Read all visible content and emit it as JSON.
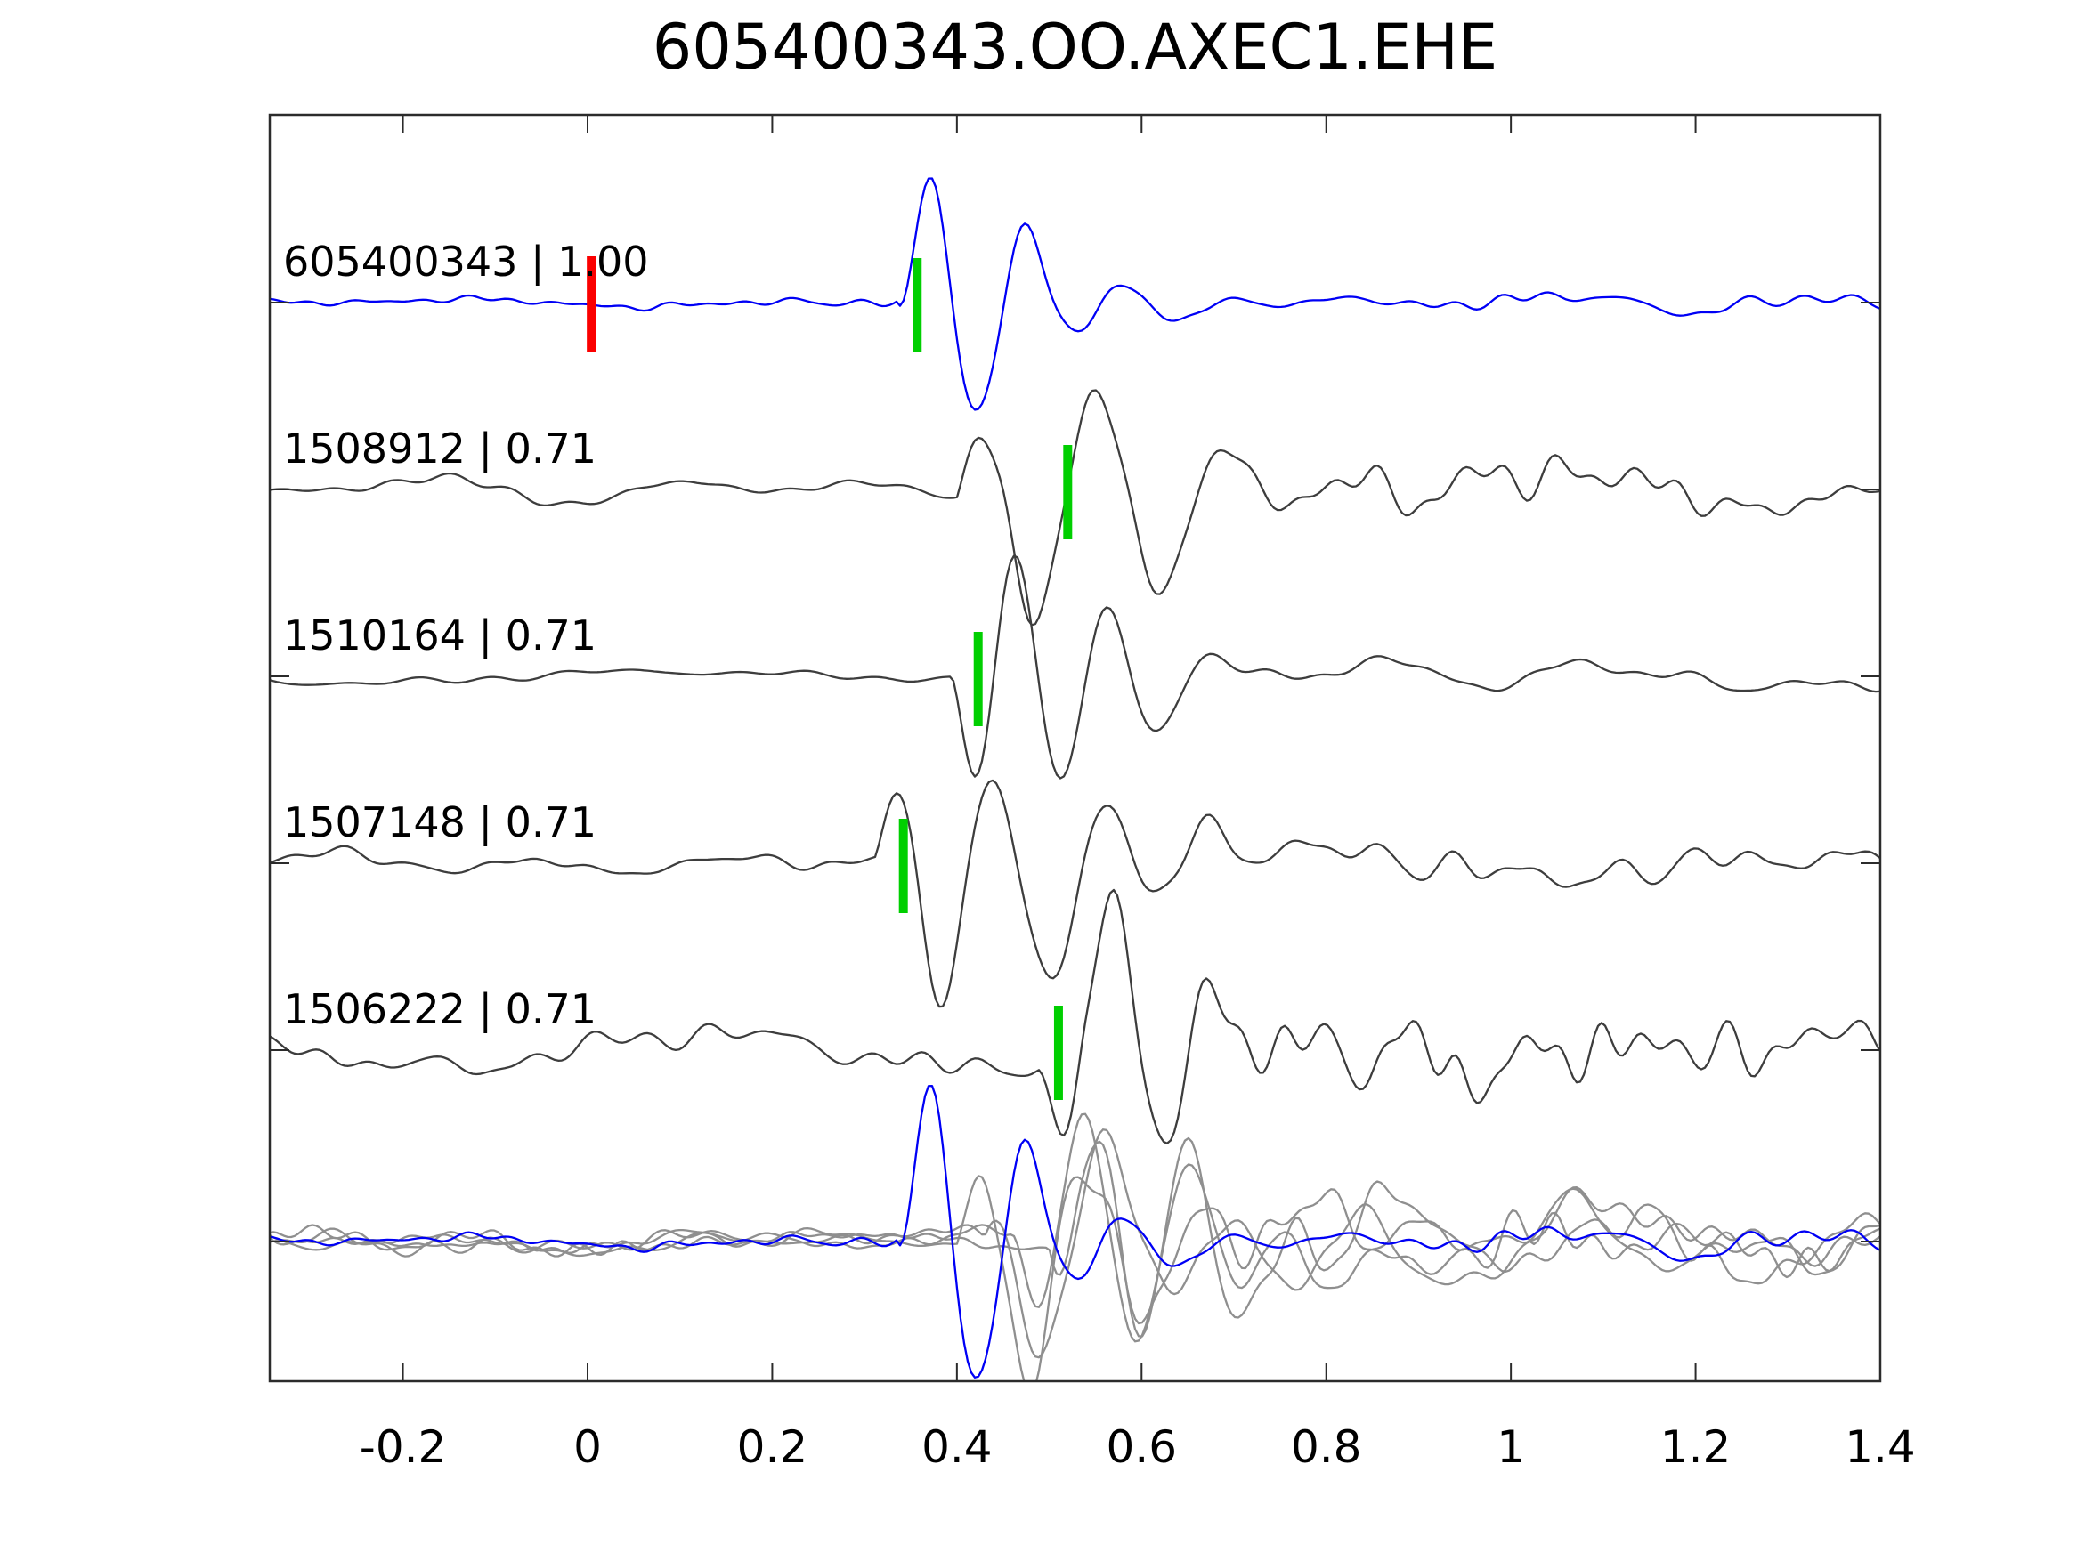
{
  "chart_data": {
    "type": "line",
    "title": "605400343.OO.AXEC1.EHE",
    "xlabel": "",
    "ylabel": "",
    "xlim": [
      -0.344,
      1.4
    ],
    "grid": false,
    "legend": "none",
    "x_ticks": [
      {
        "value": -0.2,
        "label": "-0.2"
      },
      {
        "value": 0,
        "label": "0"
      },
      {
        "value": 0.2,
        "label": "0.2"
      },
      {
        "value": 0.4,
        "label": "0.4"
      },
      {
        "value": 0.6,
        "label": "0.6"
      },
      {
        "value": 0.8,
        "label": "0.8"
      },
      {
        "value": 1,
        "label": "1"
      },
      {
        "value": 1.2,
        "label": "1.2"
      },
      {
        "value": 1.4,
        "label": "1.4"
      }
    ],
    "colors": {
      "template": "#0000f5",
      "detection": "#3d3d3d",
      "overlay_gray": "#8f8f8f",
      "pick_marker": "#00cf00",
      "origin_marker": "#fb0000",
      "frame": "#2b2b2b",
      "text": "#000000"
    },
    "series": [
      {
        "id": "605400343",
        "correlation": "1.00",
        "label": "605400343 | 1.00",
        "role": "template",
        "color": "#0000f5",
        "pick_time": 0.357,
        "pick_color": "#00cf00",
        "origin_time": 0.004,
        "origin_color": "#fb0000",
        "waveform": {
          "seed": 5,
          "noise": 7,
          "coda": 24,
          "codaDecay": 0.6,
          "codaFloor": 0.25,
          "onset": 0.335,
          "A": 185,
          "F": 9.2,
          "phase": -0.45,
          "p": 0.062,
          "d": 0.28
        }
      },
      {
        "id": "1508912",
        "correlation": "0.71",
        "label": "1508912 | 0.71",
        "role": "detection",
        "color": "#3d3d3d",
        "pick_time": 0.52,
        "pick_color": "#00cf00",
        "waveform": {
          "seed": 9,
          "noise": 14,
          "coda": 46,
          "codaDecay": 1.3,
          "codaFloor": 0.38,
          "onset": 0.4,
          "A": 170,
          "F": 7.2,
          "phase": 0.9,
          "p": 0.12,
          "d": 0.5
        }
      },
      {
        "id": "1510164",
        "correlation": "0.71",
        "label": "1510164 | 0.71",
        "role": "detection",
        "color": "#3d3d3d",
        "pick_time": 0.423,
        "pick_color": "#00cf00",
        "waveform": {
          "seed": 13,
          "noise": 11,
          "coda": 38,
          "codaDecay": 1.1,
          "codaFloor": 0.33,
          "onset": 0.395,
          "A": 175,
          "F": 9.8,
          "phase": 3.6,
          "p": 0.07,
          "d": 0.45
        }
      },
      {
        "id": "1507148",
        "correlation": "0.71",
        "label": "1507148 | 0.71",
        "role": "detection",
        "color": "#3d3d3d",
        "pick_time": 0.342,
        "pick_color": "#00cf00",
        "waveform": {
          "seed": 17,
          "noise": 15,
          "coda": 42,
          "codaDecay": 1.2,
          "codaFloor": 0.36,
          "onset": 0.312,
          "A": 175,
          "F": 8.6,
          "phase": 0.85,
          "p": 0.11,
          "d": 0.5
        }
      },
      {
        "id": "1506222",
        "correlation": "0.71",
        "label": "1506222 | 0.71",
        "role": "detection",
        "color": "#3d3d3d",
        "pick_time": 0.51,
        "pick_color": "#00cf00",
        "waveform": {
          "seed": 23,
          "noise": 28,
          "coda": 60,
          "codaDecay": 1.6,
          "codaFloor": 0.5,
          "onset": 0.488,
          "A": 165,
          "F": 9.0,
          "phase": 3.3,
          "p": 0.08,
          "d": 0.5
        }
      }
    ],
    "overlay": {
      "description": "all aligned traces superimposed, detections gray, template blue on top",
      "members": [
        {
          "role": "overlay-gray",
          "color": "#8f8f8f",
          "waveform": {
            "seed": 31,
            "noise": 16,
            "coda": 55,
            "codaDecay": 1.5,
            "codaFloor": 0.5,
            "onset": 0.4,
            "A": 150,
            "F": 7.8,
            "phase": 0.9,
            "p": 0.09,
            "d": 0.6
          }
        },
        {
          "role": "overlay-gray",
          "color": "#8f8f8f",
          "waveform": {
            "seed": 37,
            "noise": 16,
            "coda": 55,
            "codaDecay": 1.5,
            "codaFloor": 0.5,
            "onset": 0.46,
            "A": 160,
            "F": 8.8,
            "phase": 3.4,
            "p": 0.09,
            "d": 0.6
          }
        },
        {
          "role": "overlay-gray",
          "color": "#8f8f8f",
          "waveform": {
            "seed": 41,
            "noise": 16,
            "coda": 55,
            "codaDecay": 1.5,
            "codaFloor": 0.5,
            "onset": 0.43,
            "A": 145,
            "F": 7.0,
            "phase": 2.1,
            "p": 0.1,
            "d": 0.6
          }
        },
        {
          "role": "overlay-gray",
          "color": "#8f8f8f",
          "waveform": {
            "seed": 43,
            "noise": 16,
            "coda": 55,
            "codaDecay": 1.5,
            "codaFloor": 0.5,
            "onset": 0.5,
            "A": 155,
            "F": 9.4,
            "phase": 5.1,
            "p": 0.09,
            "d": 0.6
          }
        },
        {
          "role": "overlay-template",
          "color": "#0000f5",
          "waveform": {
            "seed": 5,
            "noise": 9,
            "coda": 30,
            "codaDecay": 0.8,
            "codaFloor": 0.3,
            "onset": 0.335,
            "A": 230,
            "F": 9.2,
            "phase": -0.45,
            "p": 0.062,
            "d": 0.3
          }
        }
      ]
    }
  }
}
